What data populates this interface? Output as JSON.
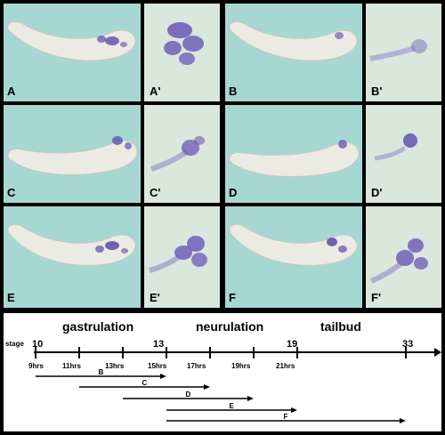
{
  "panels": [
    {
      "label": "A",
      "inset_label": "A'"
    },
    {
      "label": "B",
      "inset_label": "B'"
    },
    {
      "label": "C",
      "inset_label": "C'"
    },
    {
      "label": "D",
      "inset_label": "D'"
    },
    {
      "label": "E",
      "inset_label": "E'"
    },
    {
      "label": "F",
      "inset_label": "F'"
    }
  ],
  "timeline": {
    "phases": [
      "gastrulation",
      "neurulation",
      "tailbud"
    ],
    "stage_prefix": "stage",
    "stages": [
      "10",
      "13",
      "19",
      "33"
    ],
    "hours": [
      "9hrs",
      "11hrs",
      "13hrs",
      "15hrs",
      "17hrs",
      "19hrs",
      "21hrs"
    ],
    "bars": [
      {
        "label": "B",
        "start_hr": 9,
        "end_hr": 15
      },
      {
        "label": "C",
        "start_hr": 11,
        "end_hr": 17
      },
      {
        "label": "D",
        "start_hr": 13,
        "end_hr": 19
      },
      {
        "label": "E",
        "start_hr": 15,
        "end_hr": 21
      },
      {
        "label": "F",
        "start_hr": 15,
        "end_hr": 33
      }
    ]
  },
  "colors": {
    "panel_bg": "#a7d7d2",
    "inset_bg": "#d9e7dc",
    "stain": "#5b4aa8",
    "embryo": "#ecebe3"
  }
}
